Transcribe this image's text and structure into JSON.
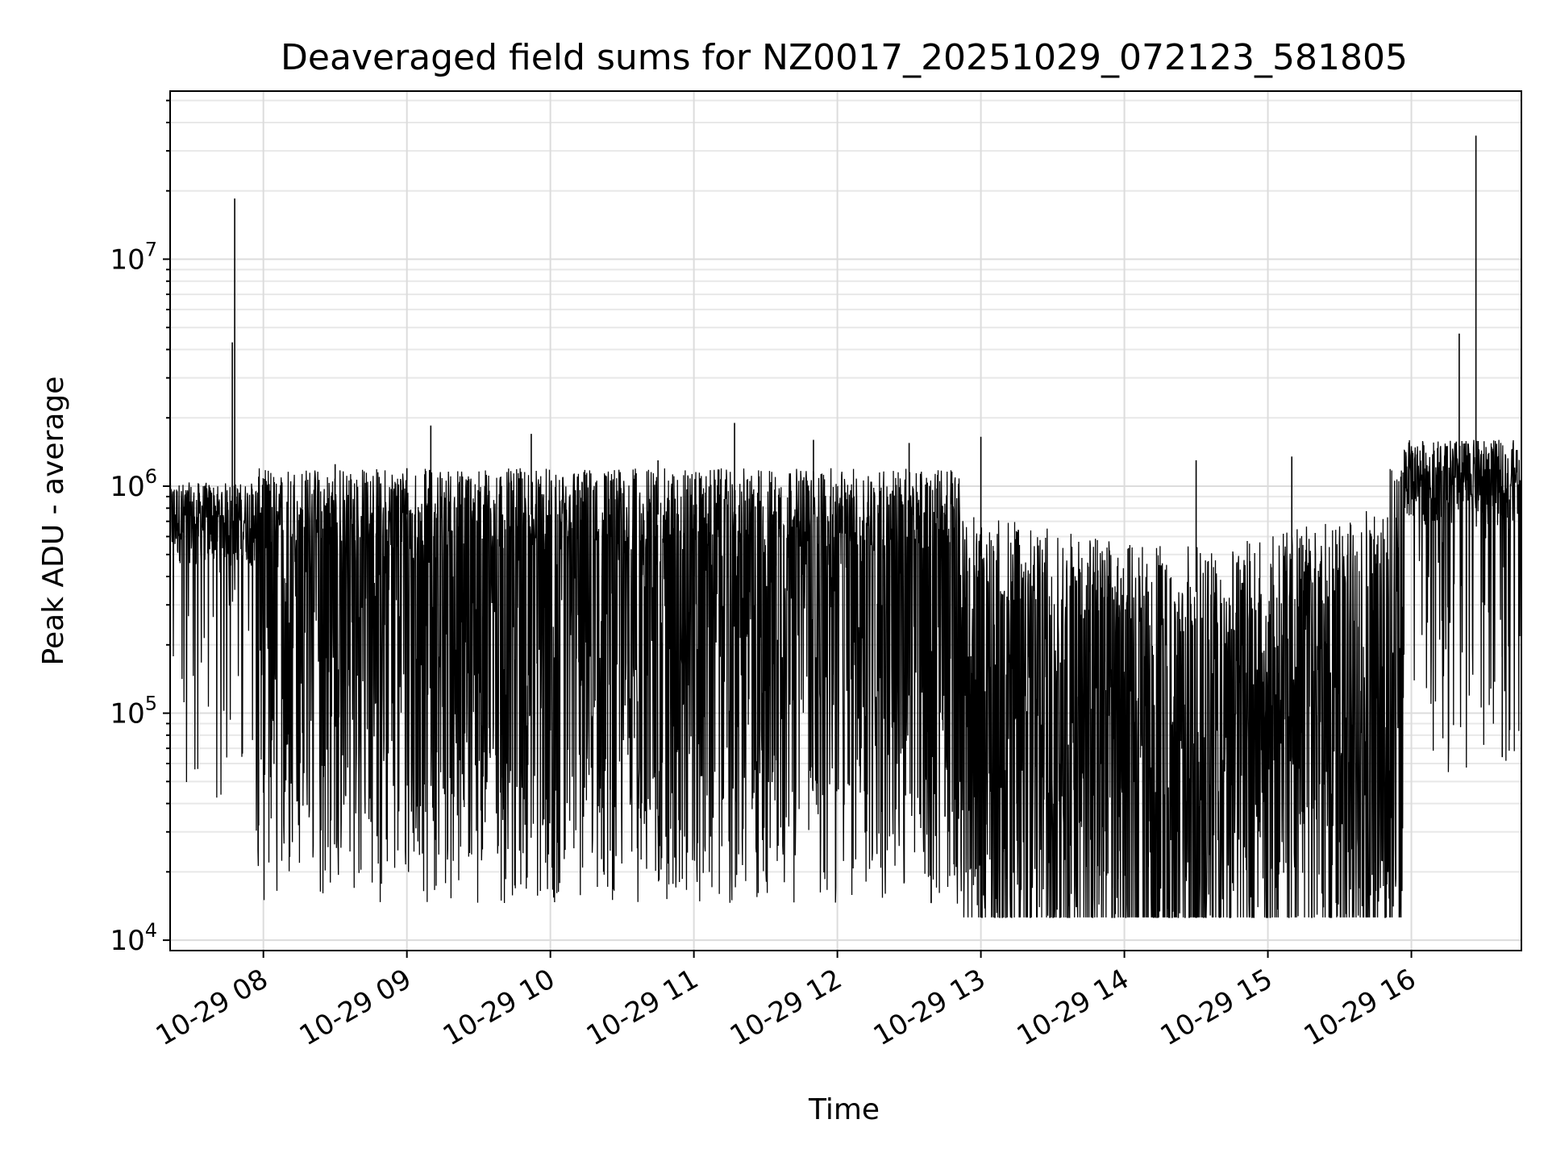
{
  "chart_data": {
    "type": "line",
    "title": "Deaveraged field sums for NZ0017_20251029_072123_581805",
    "xlabel": "Time",
    "ylabel": "Peak ADU - average",
    "yscale": "log",
    "ylim": [
      9000,
      55000000
    ],
    "xlim": [
      "2025-10-29 07:21",
      "2025-10-29 16:46"
    ],
    "grid": true,
    "x_ticks": [
      "10-29 08",
      "10-29 09",
      "10-29 10",
      "10-29 11",
      "10-29 12",
      "10-29 13",
      "10-29 14",
      "10-29 15",
      "10-29 16"
    ],
    "y_ticks": [
      {
        "value": 10000,
        "base": "10",
        "exp": "4"
      },
      {
        "value": 100000,
        "base": "10",
        "exp": "5"
      },
      {
        "value": 1000000,
        "base": "10",
        "exp": "6"
      },
      {
        "value": 10000000,
        "base": "10",
        "exp": "7"
      }
    ],
    "line_color": "#000000",
    "series": [
      {
        "values_note_free": true,
        "points": [
          [
            "2025-10-29 07:21",
            560000
          ],
          [
            "2025-10-29 07:30",
            620000
          ],
          [
            "2025-10-29 07:38",
            700000
          ],
          [
            "2025-10-29 07:45",
            850000
          ],
          [
            "2025-10-29 07:47",
            4300000
          ],
          [
            "2025-10-29 07:48",
            18500000
          ],
          [
            "2025-10-29 07:49",
            900000
          ],
          [
            "2025-10-29 07:52",
            650000
          ],
          [
            "2025-10-29 07:58",
            32000
          ],
          [
            "2025-10-29 08:03",
            420000
          ],
          [
            "2025-10-29 08:15",
            68000
          ],
          [
            "2025-10-29 08:30",
            1250000
          ],
          [
            "2025-10-29 08:45",
            75000
          ],
          [
            "2025-10-29 09:00",
            1200000
          ],
          [
            "2025-10-29 09:10",
            1850000
          ],
          [
            "2025-10-29 09:22",
            62000
          ],
          [
            "2025-10-29 09:40",
            52000
          ],
          [
            "2025-10-29 09:52",
            1700000
          ],
          [
            "2025-10-29 10:00",
            280000
          ],
          [
            "2025-10-29 10:25",
            46000
          ],
          [
            "2025-10-29 10:45",
            1300000
          ],
          [
            "2025-10-29 11:00",
            400000
          ],
          [
            "2025-10-29 11:17",
            1900000
          ],
          [
            "2025-10-29 11:33",
            55000
          ],
          [
            "2025-10-29 11:50",
            1600000
          ],
          [
            "2025-10-29 12:05",
            48000
          ],
          [
            "2025-10-29 12:30",
            1550000
          ],
          [
            "2025-10-29 12:45",
            35000
          ],
          [
            "2025-10-29 13:00",
            1650000
          ],
          [
            "2025-10-29 13:15",
            40000
          ],
          [
            "2025-10-29 13:40",
            14000
          ],
          [
            "2025-10-29 13:55",
            17000
          ],
          [
            "2025-10-29 14:10",
            21000
          ],
          [
            "2025-10-29 14:30",
            1300000
          ],
          [
            "2025-10-29 14:50",
            42000
          ],
          [
            "2025-10-29 15:10",
            1350000
          ],
          [
            "2025-10-29 15:30",
            27000
          ],
          [
            "2025-10-29 15:45",
            22000
          ],
          [
            "2025-10-29 16:00",
            1500000
          ],
          [
            "2025-10-29 16:20",
            4700000
          ],
          [
            "2025-10-29 16:27",
            35000000
          ],
          [
            "2025-10-29 16:35",
            1000000
          ],
          [
            "2025-10-29 16:38",
            64000
          ],
          [
            "2025-10-29 16:46",
            800000
          ]
        ]
      }
    ]
  }
}
